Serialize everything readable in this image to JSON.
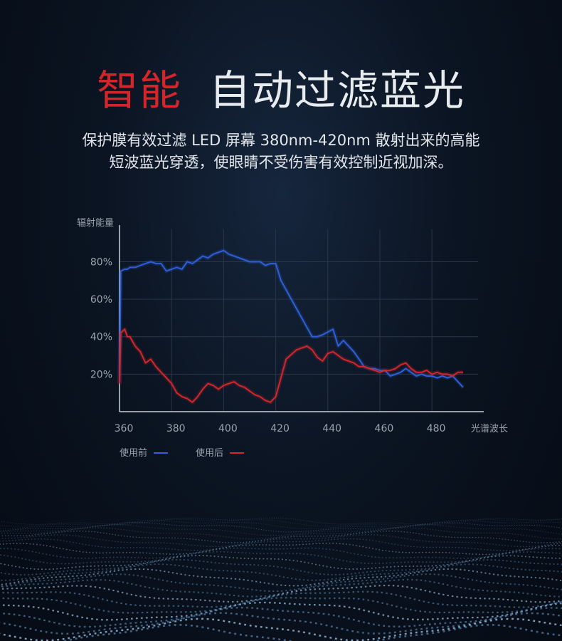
{
  "title": {
    "accent": "智能",
    "main": "自动过滤蓝光"
  },
  "subtitle": {
    "line1": "保护膜有效过滤 LED 屏幕 380nm-420nm 散射出来的高能",
    "line2": "短波蓝光穿透，使眼睛不受伤害有效控制近视加深。"
  },
  "chart_data": {
    "type": "line",
    "ylabel": "辐射能量",
    "xlabel": "光谱波长",
    "xlim": [
      360,
      495
    ],
    "ylim": [
      0,
      95
    ],
    "xticks": [
      "360",
      "380",
      "400",
      "420",
      "440",
      "460",
      "480"
    ],
    "yticks": [
      "20%",
      "40%",
      "60%",
      "80%"
    ],
    "grid": true,
    "legend_position": "bottom-left",
    "series": [
      {
        "name": "使用前",
        "color": "#2e5fd8",
        "x": [
          360,
          360.5,
          362,
          363,
          364,
          366,
          368,
          370,
          372,
          374,
          376,
          378,
          380,
          382,
          384,
          386,
          388,
          390,
          392,
          394,
          396,
          398,
          400,
          402,
          404,
          406,
          408,
          410,
          412,
          414,
          416,
          418,
          420,
          422,
          426,
          430,
          434,
          436,
          438,
          442,
          444,
          446,
          448,
          450,
          452,
          454,
          456,
          458,
          460,
          462,
          464,
          466,
          468,
          470,
          472,
          474,
          476,
          478,
          480,
          482,
          484,
          486,
          488,
          490,
          492
        ],
        "y": [
          15,
          75,
          76,
          76,
          77,
          77,
          78,
          79,
          80,
          79,
          79,
          75,
          76,
          77,
          76,
          80,
          79,
          81,
          83,
          82,
          84,
          85,
          86,
          84,
          83,
          82,
          81,
          80,
          80,
          80,
          78,
          79,
          79,
          70,
          60,
          50,
          40,
          40,
          41,
          44,
          35,
          38,
          35,
          32,
          28,
          24,
          23,
          23,
          22,
          22,
          19,
          20,
          21,
          23,
          21,
          19,
          20,
          19,
          19,
          18,
          19,
          18,
          19,
          16,
          13
        ]
      },
      {
        "name": "使用后",
        "color": "#d3262a",
        "x": [
          360,
          360.5,
          362,
          363,
          364,
          366,
          368,
          370,
          372,
          374,
          376,
          378,
          380,
          382,
          384,
          386,
          388,
          390,
          392,
          394,
          396,
          398,
          400,
          402,
          404,
          406,
          408,
          410,
          412,
          414,
          416,
          418,
          420,
          424,
          428,
          432,
          434,
          436,
          438,
          440,
          442,
          446,
          450,
          452,
          454,
          456,
          458,
          460,
          462,
          464,
          466,
          468,
          470,
          472,
          474,
          476,
          478,
          480,
          482,
          484,
          486,
          488,
          490,
          492
        ],
        "y": [
          15,
          42,
          44,
          40,
          40,
          35,
          32,
          26,
          28,
          24,
          21,
          18,
          15,
          10,
          8,
          7,
          5,
          8,
          12,
          15,
          14,
          12,
          14,
          15,
          16,
          14,
          13,
          11,
          9,
          8,
          6,
          5,
          8,
          28,
          33,
          35,
          33,
          29,
          27,
          31,
          32,
          28,
          26,
          24,
          24,
          23,
          22,
          21,
          22,
          22,
          23,
          25,
          26,
          23,
          21,
          21,
          22,
          20,
          21,
          20,
          20,
          19,
          21,
          21
        ]
      }
    ]
  }
}
